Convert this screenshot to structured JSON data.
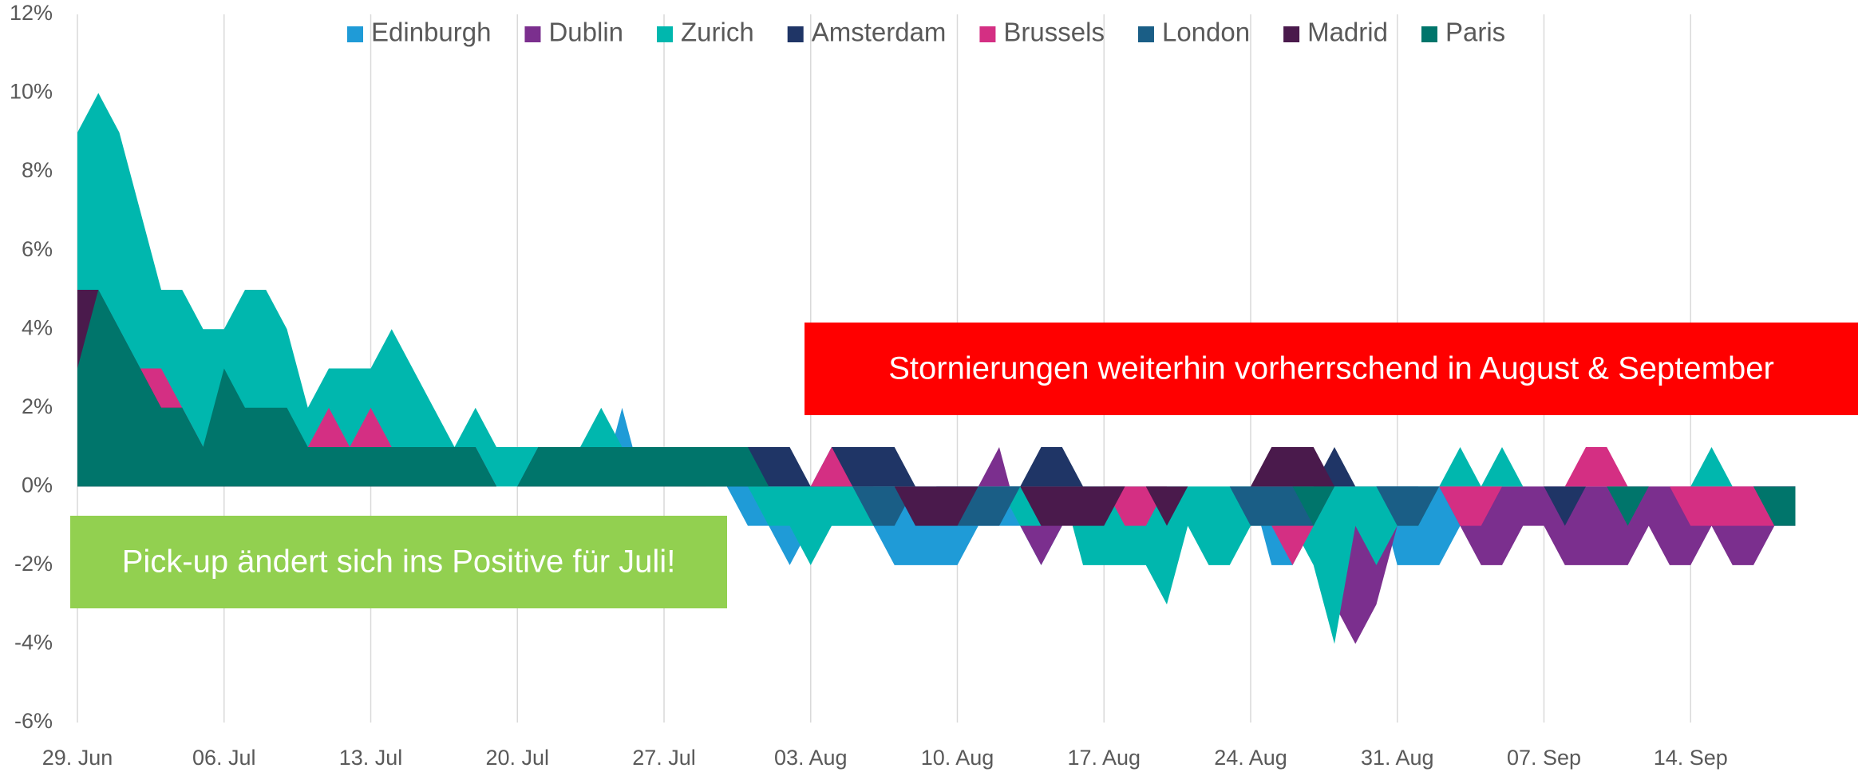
{
  "chart_data": {
    "type": "area",
    "legend": "top",
    "grid": true,
    "categories": [
      "29. Jun",
      null,
      null,
      null,
      null,
      null,
      null,
      "06. Jul",
      null,
      null,
      null,
      null,
      null,
      null,
      "13. Jul",
      null,
      null,
      null,
      null,
      null,
      null,
      "20. Jul",
      null,
      null,
      null,
      null,
      null,
      null,
      "27. Jul",
      null,
      null,
      null,
      null,
      null,
      null,
      "03. Aug",
      null,
      null,
      null,
      null,
      null,
      null,
      "10. Aug",
      null,
      null,
      null,
      null,
      null,
      null,
      "17. Aug",
      null,
      null,
      null,
      null,
      null,
      null,
      "24. Aug",
      null,
      null,
      null,
      null,
      null,
      null,
      "31. Aug",
      null,
      null,
      null,
      null,
      null,
      null,
      "07. Sep",
      null,
      null,
      null,
      null,
      null,
      null,
      "14. Sep",
      null,
      null,
      null,
      null,
      null
    ],
    "ylim": [
      -6,
      12
    ],
    "yticks": [
      {
        "value": -6,
        "label": "-6%"
      },
      {
        "value": -4,
        "label": "-4%"
      },
      {
        "value": -2,
        "label": "-2%"
      },
      {
        "value": 0,
        "label": "0%"
      },
      {
        "value": 2,
        "label": "2%"
      },
      {
        "value": 4,
        "label": "4%"
      },
      {
        "value": 6,
        "label": "6%"
      },
      {
        "value": 8,
        "label": "8%"
      },
      {
        "value": 10,
        "label": "10%"
      },
      {
        "value": 12,
        "label": "12%"
      }
    ],
    "series": [
      {
        "name": "Edinburgh",
        "color": "#1f9bd7",
        "values": [
          0,
          0,
          0,
          0,
          0,
          0,
          0,
          0,
          0,
          0,
          0,
          0,
          0,
          0,
          0,
          0,
          0,
          0,
          0,
          0,
          0,
          0,
          0,
          0,
          0,
          0,
          2,
          0,
          0,
          0,
          0,
          0,
          -1,
          -1,
          -2,
          -1,
          -1,
          -1,
          -1,
          -2,
          -2,
          -2,
          -2,
          -1,
          -1,
          -1,
          -2,
          -1,
          0,
          0,
          0,
          0,
          0,
          0,
          0,
          0,
          0,
          -2,
          -2,
          -1,
          0,
          0,
          0,
          -2,
          -2,
          -2,
          -1,
          0,
          0,
          0,
          0,
          0,
          0,
          0,
          0,
          0,
          0,
          0,
          0,
          0,
          0,
          -1,
          0
        ]
      },
      {
        "name": "Dublin",
        "color": "#7b2f8e",
        "values": [
          0,
          0,
          0,
          0,
          0,
          0,
          0,
          0,
          0,
          0,
          0,
          0,
          0,
          0,
          0,
          0,
          0,
          0,
          0,
          0,
          0,
          0,
          0,
          0,
          0,
          0,
          0,
          0,
          0,
          0,
          0,
          0,
          0,
          0,
          0,
          0,
          0,
          -1,
          0,
          0,
          0,
          0,
          0,
          0,
          1,
          -1,
          -2,
          -1,
          0,
          0,
          0,
          0,
          0,
          0,
          0,
          0,
          0,
          0,
          0,
          -1,
          -3,
          -4,
          -3,
          -1,
          0,
          0,
          -1,
          -2,
          -2,
          -1,
          -1,
          -2,
          -2,
          -2,
          -2,
          -1,
          -2,
          -2,
          -1,
          -2,
          -2,
          -1,
          -1
        ]
      },
      {
        "name": "Zurich",
        "color": "#00b7ae",
        "values": [
          9,
          10,
          9,
          7,
          5,
          5,
          4,
          4,
          5,
          5,
          4,
          2,
          3,
          3,
          3,
          4,
          3,
          2,
          1,
          2,
          1,
          1,
          1,
          1,
          1,
          2,
          1,
          1,
          1,
          1,
          1,
          1,
          0,
          -1,
          -1,
          -2,
          -1,
          -1,
          -1,
          0,
          0,
          0,
          0,
          0,
          0,
          -1,
          -1,
          0,
          -2,
          -2,
          -2,
          -2,
          -3,
          -1,
          -2,
          -2,
          -1,
          -1,
          -1,
          -2,
          -4,
          -1,
          -2,
          -1,
          -1,
          0,
          1,
          0,
          1,
          0,
          0,
          0,
          0,
          0,
          0,
          0,
          0,
          0,
          1,
          0,
          0,
          0,
          0
        ]
      },
      {
        "name": "Amsterdam",
        "color": "#1f3566",
        "values": [
          0,
          0,
          0,
          0,
          0,
          0,
          0,
          0,
          0,
          0,
          0,
          0,
          0,
          0,
          0,
          0,
          0,
          0,
          0,
          0,
          0,
          0,
          0,
          0,
          0,
          0,
          0,
          0,
          0,
          0,
          1,
          1,
          1,
          1,
          1,
          0,
          1,
          1,
          1,
          1,
          0,
          0,
          0,
          0,
          0,
          0,
          1,
          1,
          0,
          0,
          0,
          0,
          0,
          0,
          0,
          0,
          0,
          0,
          0,
          0,
          1,
          0,
          0,
          0,
          0,
          0,
          0,
          0,
          0,
          0,
          0,
          -1,
          0,
          0,
          0,
          0,
          0,
          0,
          0,
          0,
          0,
          0,
          0
        ]
      },
      {
        "name": "Brussels",
        "color": "#d42f83",
        "values": [
          0,
          0,
          2,
          3,
          3,
          2,
          1,
          1,
          1,
          1,
          1,
          1,
          2,
          1,
          2,
          1,
          1,
          1,
          1,
          1,
          0,
          0,
          0,
          0,
          0,
          0,
          0,
          0,
          0,
          0,
          0,
          0,
          0,
          0,
          0,
          0,
          1,
          0,
          0,
          0,
          0,
          0,
          0,
          0,
          0,
          0,
          0,
          0,
          0,
          0,
          -1,
          -1,
          0,
          0,
          0,
          0,
          0,
          -1,
          -2,
          -1,
          0,
          0,
          0,
          0,
          0,
          0,
          -1,
          -1,
          0,
          0,
          0,
          0,
          1,
          1,
          0,
          0,
          0,
          -1,
          -1,
          -1,
          -1,
          -1,
          0
        ]
      },
      {
        "name": "London",
        "color": "#1a5e86",
        "values": [
          0,
          0,
          0,
          0,
          0,
          0,
          0,
          0,
          0,
          0,
          0,
          0,
          0,
          0,
          0,
          0,
          0,
          0,
          0,
          0,
          0,
          0,
          0,
          0,
          0,
          0,
          0,
          0,
          0,
          0,
          0,
          0,
          0,
          0,
          0,
          0,
          0,
          0,
          -1,
          -1,
          0,
          0,
          -1,
          -1,
          -1,
          0,
          0,
          0,
          0,
          0,
          0,
          0,
          0,
          0,
          0,
          0,
          -1,
          -1,
          -1,
          -1,
          0,
          0,
          0,
          -1,
          -1,
          0,
          0,
          0,
          0,
          0,
          0,
          0,
          0,
          0,
          0,
          0,
          0,
          0,
          0,
          0,
          0,
          0,
          0
        ]
      },
      {
        "name": "Madrid",
        "color": "#4a1a4c",
        "values": [
          5,
          5,
          4,
          3,
          2,
          2,
          1,
          1,
          1,
          1,
          1,
          1,
          1,
          1,
          1,
          1,
          1,
          1,
          1,
          1,
          0,
          0,
          1,
          1,
          1,
          1,
          1,
          1,
          1,
          1,
          0,
          0,
          0,
          0,
          0,
          0,
          0,
          0,
          0,
          0,
          -1,
          -1,
          -1,
          0,
          0,
          0,
          -1,
          -1,
          -1,
          -1,
          0,
          0,
          -1,
          0,
          0,
          0,
          0,
          1,
          1,
          1,
          0,
          0,
          0,
          0,
          0,
          0,
          0,
          0,
          0,
          0,
          0,
          0,
          0,
          0,
          0,
          0,
          0,
          0,
          0,
          0,
          0,
          0,
          0
        ]
      },
      {
        "name": "Paris",
        "color": "#00756b",
        "values": [
          3,
          5,
          4,
          3,
          2,
          2,
          1,
          3,
          2,
          2,
          2,
          1,
          1,
          1,
          1,
          1,
          1,
          1,
          1,
          1,
          0,
          0,
          1,
          1,
          1,
          1,
          1,
          1,
          1,
          1,
          1,
          1,
          1,
          0,
          0,
          0,
          0,
          0,
          0,
          0,
          0,
          0,
          0,
          0,
          0,
          0,
          0,
          0,
          0,
          0,
          0,
          0,
          0,
          0,
          0,
          0,
          0,
          0,
          0,
          -1,
          0,
          0,
          0,
          0,
          0,
          0,
          0,
          0,
          0,
          0,
          0,
          0,
          0,
          0,
          -1,
          0,
          0,
          0,
          0,
          0,
          0,
          -1,
          -1
        ]
      }
    ],
    "annotations": [
      {
        "text": "Stornierungen weiterhin vorherrschend in  August & September",
        "color": "#ff0000"
      },
      {
        "text": "Pick-up ändert sich ins Positive für Juli!",
        "color": "#92d050"
      }
    ]
  }
}
